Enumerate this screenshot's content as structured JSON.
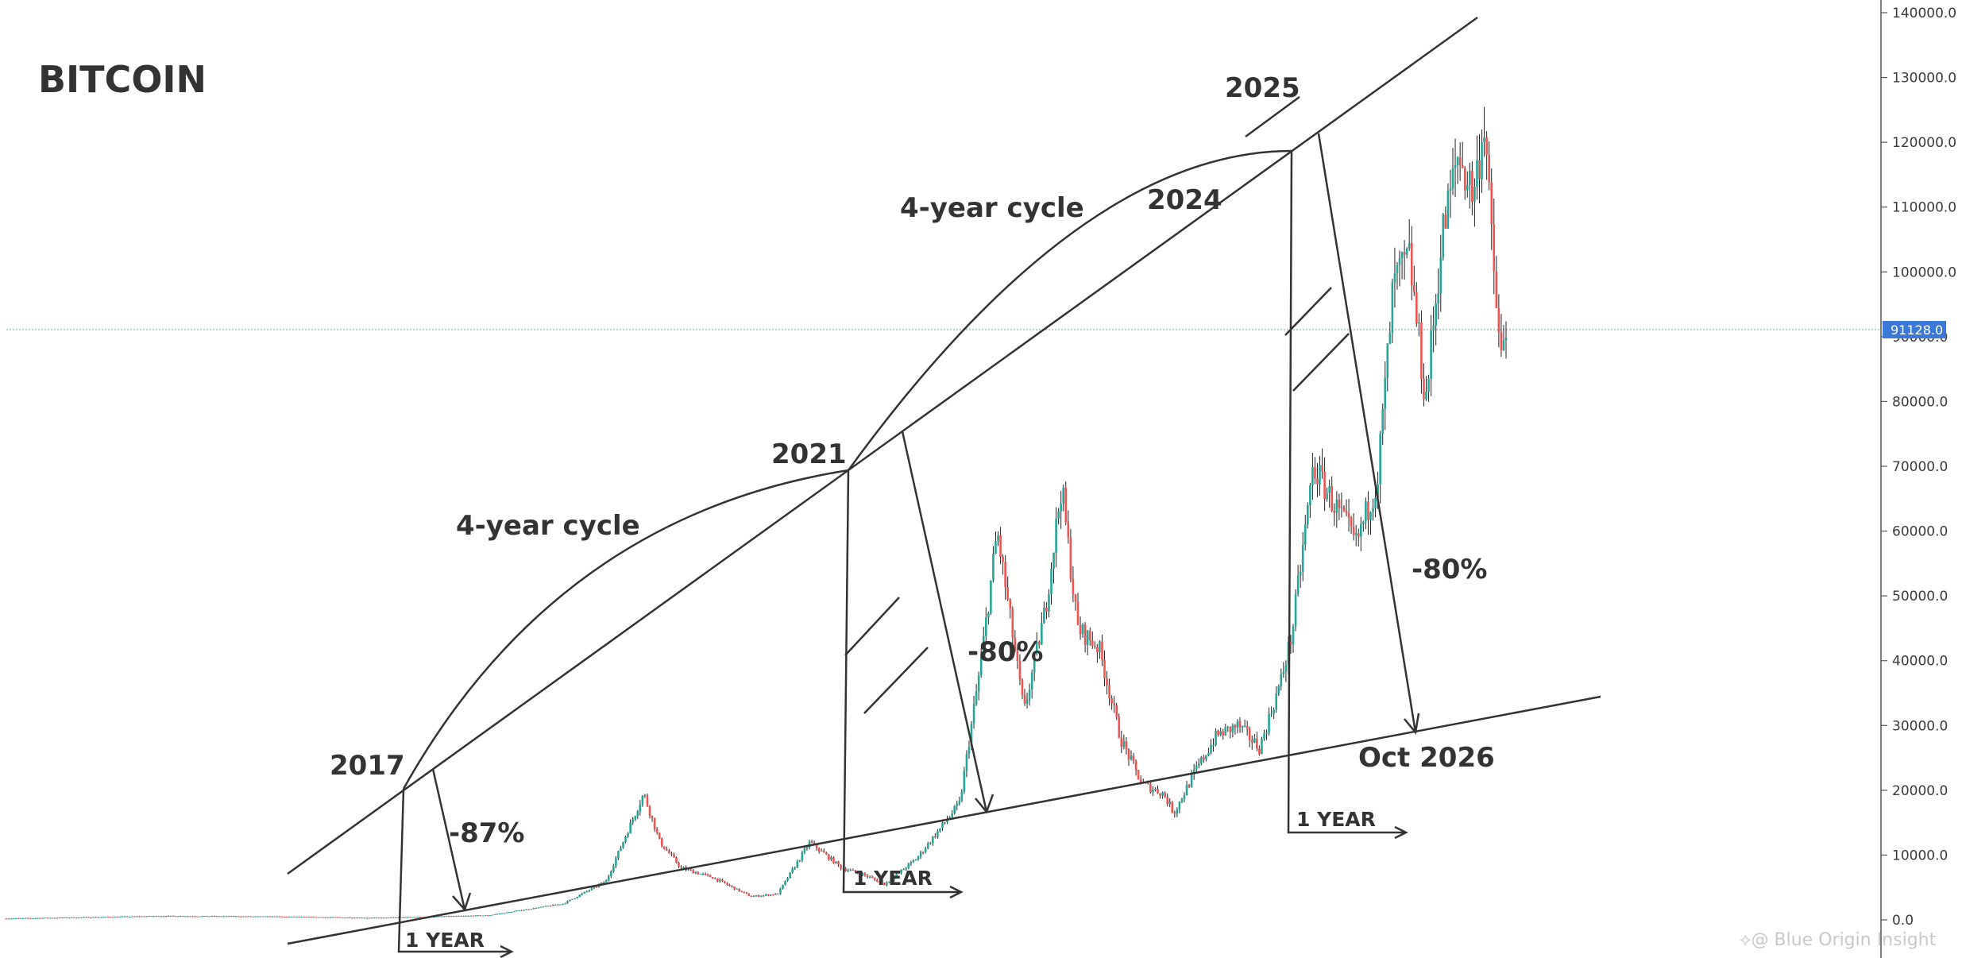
{
  "title": "BITCOIN",
  "watermark": "⟡@ Blue Origin Insight",
  "chart_data": {
    "type": "candlestick",
    "asset": "BITCOIN",
    "y_axis": {
      "position": "right",
      "min": 0,
      "max": 140000,
      "ticks": [
        0,
        10000,
        20000,
        30000,
        40000,
        50000,
        60000,
        70000,
        80000,
        90000,
        100000,
        110000,
        120000,
        130000,
        140000
      ],
      "tick_labels": [
        "0.0",
        "10000.0",
        "20000.0",
        "30000.0",
        "40000.0",
        "50000.0",
        "60000.0",
        "70000.0",
        "80000.0",
        "90000.0",
        "100000.0",
        "110000.0",
        "120000.0",
        "130000.0",
        "140000.0"
      ]
    },
    "x_axis": {
      "unit": "year",
      "min": 2012.0,
      "max": 2029.5,
      "labels_shown": false
    },
    "current_price": {
      "value": 91128.0,
      "label": "91128.0",
      "tag_color": "#3c78d8",
      "line_color": "#7fb3b0"
    },
    "price_path": [
      [
        2012.0,
        200
      ],
      [
        2013.5,
        600
      ],
      [
        2014.5,
        500
      ],
      [
        2015.5,
        300
      ],
      [
        2016.5,
        700
      ],
      [
        2017.2,
        2500
      ],
      [
        2017.6,
        6000
      ],
      [
        2017.95,
        19500
      ],
      [
        2018.1,
        12000
      ],
      [
        2018.3,
        8000
      ],
      [
        2018.6,
        6500
      ],
      [
        2018.95,
        3600
      ],
      [
        2019.2,
        4000
      ],
      [
        2019.5,
        12000
      ],
      [
        2019.8,
        8000
      ],
      [
        2020.0,
        7000
      ],
      [
        2020.2,
        5500
      ],
      [
        2020.5,
        9500
      ],
      [
        2020.9,
        18000
      ],
      [
        2021.1,
        40000
      ],
      [
        2021.25,
        60000
      ],
      [
        2021.5,
        32000
      ],
      [
        2021.7,
        48000
      ],
      [
        2021.85,
        67000
      ],
      [
        2022.0,
        45000
      ],
      [
        2022.2,
        42000
      ],
      [
        2022.4,
        28000
      ],
      [
        2022.6,
        21000
      ],
      [
        2022.8,
        19500
      ],
      [
        2022.9,
        16500
      ],
      [
        2023.1,
        23000
      ],
      [
        2023.3,
        28500
      ],
      [
        2023.5,
        30000
      ],
      [
        2023.7,
        26500
      ],
      [
        2023.9,
        37000
      ],
      [
        2024.0,
        44000
      ],
      [
        2024.2,
        70000
      ],
      [
        2024.4,
        64000
      ],
      [
        2024.6,
        58000
      ],
      [
        2024.8,
        68000
      ],
      [
        2024.95,
        98000
      ],
      [
        2025.1,
        102000
      ],
      [
        2025.25,
        80000
      ],
      [
        2025.4,
        105000
      ],
      [
        2025.55,
        118000
      ],
      [
        2025.7,
        112000
      ],
      [
        2025.8,
        124000
      ],
      [
        2025.85,
        108000
      ],
      [
        2025.95,
        86000
      ],
      [
        2026.0,
        91128
      ]
    ],
    "colors": {
      "up": "#26a69a",
      "down": "#ef5350"
    },
    "annotations": {
      "years": [
        "2017",
        "2021",
        "2024",
        "2025"
      ],
      "cycles": [
        "4-year cycle",
        "4-year cycle"
      ],
      "drawdowns": [
        "-87%",
        "-80%",
        "-80%"
      ],
      "durations": [
        "1 YEAR",
        "1 YEAR",
        "1 YEAR"
      ],
      "target": "Oct 2026"
    }
  }
}
